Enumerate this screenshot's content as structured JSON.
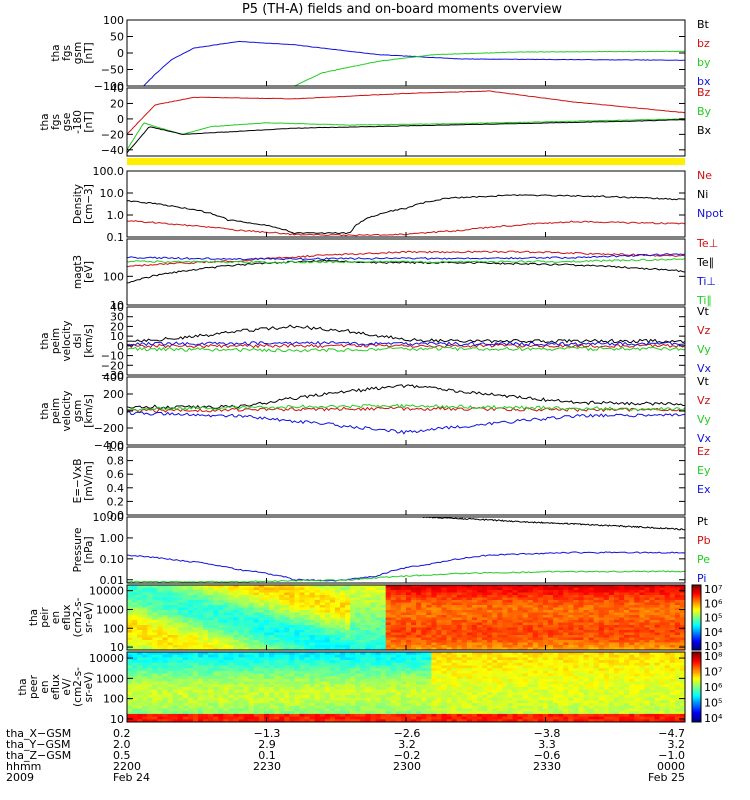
{
  "title": "P5 (TH-A) fields and on-board moments overview",
  "palette": {
    "black": "#000000",
    "red": "#d01010",
    "green": "#22cc22",
    "blue": "#1010e0",
    "yellow": "#ffee00"
  },
  "chart_data": [
    {
      "type": "line",
      "id": "fgs_gsm",
      "ylabel": [
        "tha",
        "fgs",
        "gsm",
        "[nT]"
      ],
      "ylim": [
        -100,
        100
      ],
      "yticks": [
        "100",
        "50",
        "0",
        "−50",
        "−100"
      ],
      "ytickvals": [
        100,
        50,
        0,
        -50,
        -100
      ],
      "legend": [
        {
          "name": "Bt",
          "color": "#000000"
        },
        {
          "name": "bz",
          "color": "#d01010"
        },
        {
          "name": "by",
          "color": "#22cc22"
        },
        {
          "name": "bx",
          "color": "#1010e0"
        }
      ],
      "series": [
        {
          "name": "bx",
          "color": "#1010e0",
          "x": [
            0.03,
            0.05,
            0.08,
            0.12,
            0.2,
            0.3,
            0.45,
            0.6,
            1.0
          ],
          "y": [
            -100,
            -65,
            -20,
            15,
            35,
            25,
            -5,
            -18,
            -22
          ]
        },
        {
          "name": "by",
          "color": "#22cc22",
          "x": [
            0.3,
            0.35,
            0.45,
            0.55,
            0.7,
            1.0
          ],
          "y": [
            -100,
            -60,
            -25,
            -5,
            3,
            5
          ]
        }
      ]
    },
    {
      "type": "line",
      "id": "fgs_gse",
      "ylabel": [
        "tha",
        "fgs",
        "gse",
        "-180",
        "[nT]"
      ],
      "ylim": [
        -48,
        40
      ],
      "yticks": [
        "40",
        "20",
        "0",
        "−20",
        "−40"
      ],
      "ytickvals": [
        40,
        20,
        0,
        -20,
        -40
      ],
      "legend": [
        {
          "name": "Bz",
          "color": "#d01010"
        },
        {
          "name": "By",
          "color": "#22cc22"
        },
        {
          "name": "Bx",
          "color": "#000000"
        }
      ],
      "series": [
        {
          "name": "Bz",
          "color": "#d01010",
          "x": [
            0.0,
            0.05,
            0.12,
            0.3,
            0.5,
            0.65,
            0.8,
            1.0
          ],
          "y": [
            -20,
            18,
            28,
            26,
            33,
            36,
            22,
            8
          ]
        },
        {
          "name": "By",
          "color": "#22cc22",
          "x": [
            0.0,
            0.03,
            0.06,
            0.1,
            0.15,
            0.25,
            0.4,
            0.6,
            0.8,
            1.0
          ],
          "y": [
            -40,
            -5,
            -12,
            -20,
            -10,
            -5,
            -8,
            -6,
            -3,
            0
          ]
        },
        {
          "name": "Bx",
          "color": "#000000",
          "x": [
            0.0,
            0.04,
            0.1,
            0.2,
            0.3,
            0.5,
            0.7,
            0.9,
            1.0
          ],
          "y": [
            -44,
            -10,
            -20,
            -16,
            -12,
            -9,
            -6,
            -3,
            -1
          ]
        }
      ]
    },
    {
      "type": "line",
      "id": "density",
      "ylog": true,
      "ylabel": [
        "Density",
        "[cm−3]"
      ],
      "ylim": [
        0.1,
        100
      ],
      "yticks": [
        "100.0",
        "10.0",
        "1.0",
        "0.1"
      ],
      "ytickvals": [
        100,
        10,
        1,
        0.1
      ],
      "legend": [
        {
          "name": "Ne",
          "color": "#d01010"
        },
        {
          "name": "Ni",
          "color": "#000000"
        },
        {
          "name": "Npot",
          "color": "#1010e0"
        }
      ],
      "series": [
        {
          "name": "Ni",
          "color": "#000000",
          "x": [
            0.0,
            0.08,
            0.18,
            0.3,
            0.4,
            0.42,
            0.5,
            0.58,
            0.7,
            0.85,
            1.0
          ],
          "y": [
            4.5,
            2.5,
            0.6,
            0.15,
            0.15,
            0.5,
            2,
            6,
            8,
            7,
            5
          ]
        },
        {
          "name": "Ne",
          "color": "#d01010",
          "x": [
            0.0,
            0.1,
            0.2,
            0.3,
            0.4,
            0.5,
            0.6,
            0.7,
            0.8,
            0.9,
            1.0
          ],
          "y": [
            0.55,
            0.35,
            0.2,
            0.13,
            0.12,
            0.13,
            0.2,
            0.35,
            0.5,
            0.45,
            0.4
          ]
        }
      ]
    },
    {
      "type": "line",
      "id": "magt3",
      "ylog": true,
      "ylabel": [
        "magt3",
        "[eV]"
      ],
      "ylim": [
        10,
        2000
      ],
      "yticks": [
        "100",
        "10"
      ],
      "ytickvals": [
        100,
        10
      ],
      "legend": [
        {
          "name": "Te⊥",
          "color": "#d01010"
        },
        {
          "name": "Te∥",
          "color": "#000000"
        },
        {
          "name": "Ti⊥",
          "color": "#1010e0"
        },
        {
          "name": "Ti∥",
          "color": "#22cc22"
        }
      ],
      "series": [
        {
          "name": "Te⊥",
          "color": "#d01010",
          "x": [
            0.0,
            0.2,
            0.4,
            0.5,
            0.7,
            0.85,
            1.0
          ],
          "y": [
            220,
            350,
            600,
            700,
            720,
            600,
            500
          ]
        },
        {
          "name": "Te∥",
          "color": "#000000",
          "x": [
            0.0,
            0.1,
            0.2,
            0.35,
            0.45,
            0.6,
            0.8,
            1.0
          ],
          "y": [
            60,
            150,
            250,
            350,
            300,
            300,
            250,
            150
          ]
        },
        {
          "name": "Ti⊥",
          "color": "#1010e0",
          "x": [
            0.0,
            0.2,
            0.45,
            0.6,
            0.8,
            1.0
          ],
          "y": [
            450,
            400,
            420,
            420,
            450,
            600
          ]
        },
        {
          "name": "Ti∥",
          "color": "#22cc22",
          "x": [
            0.0,
            0.2,
            0.45,
            0.6,
            0.8,
            1.0
          ],
          "y": [
            330,
            310,
            320,
            320,
            330,
            400
          ]
        }
      ]
    },
    {
      "type": "line",
      "id": "peim_vel_dsl",
      "ylabel": [
        "tha",
        "peim",
        "velocity",
        "dsl",
        "[km/s]"
      ],
      "ylim": [
        -30,
        40
      ],
      "yticks": [
        "40",
        "30",
        "20",
        "10",
        "0",
        "−10",
        "−20",
        "−30"
      ],
      "ytickvals": [
        40,
        30,
        20,
        10,
        0,
        -10,
        -20,
        -30
      ],
      "legend": [
        {
          "name": "Vt",
          "color": "#000000"
        },
        {
          "name": "Vz",
          "color": "#d01010"
        },
        {
          "name": "Vy",
          "color": "#22cc22"
        },
        {
          "name": "Vx",
          "color": "#1010e0"
        }
      ],
      "series": [
        {
          "name": "Vt",
          "color": "#000000",
          "x": [
            0.0,
            0.1,
            0.2,
            0.3,
            0.4,
            0.5,
            0.6,
            0.8,
            1.0
          ],
          "y": [
            5,
            8,
            15,
            20,
            15,
            6,
            5,
            5,
            5
          ]
        },
        {
          "name": "Vz",
          "color": "#d01010",
          "x": [
            0.0,
            0.3,
            0.5,
            1.0
          ],
          "y": [
            0,
            0,
            0,
            0
          ]
        },
        {
          "name": "Vy",
          "color": "#22cc22",
          "x": [
            0.0,
            0.3,
            0.5,
            1.0
          ],
          "y": [
            -3,
            -5,
            -3,
            -3
          ]
        },
        {
          "name": "Vx",
          "color": "#1010e0",
          "x": [
            0.0,
            0.3,
            0.5,
            1.0
          ],
          "y": [
            2,
            3,
            2,
            2
          ]
        }
      ]
    },
    {
      "type": "line",
      "id": "peim_vel_gsm",
      "ylabel": [
        "tha",
        "peim",
        "velocity",
        "gsm",
        "[km/s]"
      ],
      "ylim": [
        -400,
        400
      ],
      "yticks": [
        "400",
        "200",
        "0",
        "−200",
        "−400"
      ],
      "ytickvals": [
        400,
        200,
        0,
        -200,
        -400
      ],
      "legend": [
        {
          "name": "Vt",
          "color": "#000000"
        },
        {
          "name": "Vz",
          "color": "#d01010"
        },
        {
          "name": "Vy",
          "color": "#22cc22"
        },
        {
          "name": "Vx",
          "color": "#1010e0"
        }
      ],
      "series": [
        {
          "name": "Vt",
          "color": "#000000",
          "x": [
            0.0,
            0.2,
            0.35,
            0.5,
            0.65,
            0.8,
            1.0
          ],
          "y": [
            50,
            50,
            200,
            300,
            200,
            100,
            80
          ]
        },
        {
          "name": "Vz",
          "color": "#d01010",
          "x": [
            0.0,
            0.3,
            0.5,
            0.7,
            1.0
          ],
          "y": [
            0,
            20,
            30,
            20,
            10
          ]
        },
        {
          "name": "Vy",
          "color": "#22cc22",
          "x": [
            0.0,
            0.3,
            0.5,
            0.7,
            1.0
          ],
          "y": [
            20,
            50,
            60,
            40,
            20
          ]
        },
        {
          "name": "Vx",
          "color": "#1010e0",
          "x": [
            0.0,
            0.2,
            0.35,
            0.5,
            0.65,
            0.8,
            1.0
          ],
          "y": [
            -20,
            -60,
            -150,
            -250,
            -150,
            -60,
            -40
          ]
        }
      ]
    },
    {
      "type": "line",
      "id": "efield",
      "ylabel": [
        "E=−VxB",
        "[mV/m]"
      ],
      "ylim": [
        0,
        1
      ],
      "yticks": [
        "1.0",
        "0.8",
        "0.6",
        "0.4",
        "0.2",
        "0.0"
      ],
      "ytickvals": [
        1,
        0.8,
        0.6,
        0.4,
        0.2,
        0
      ],
      "legend": [
        {
          "name": "Ez",
          "color": "#d01010"
        },
        {
          "name": "Ey",
          "color": "#22cc22"
        },
        {
          "name": "Ex",
          "color": "#1010e0"
        }
      ],
      "series": []
    },
    {
      "type": "line",
      "id": "pressure",
      "ylog": true,
      "ylabel": [
        "Pressure",
        "[nPa]"
      ],
      "ylim": [
        0.007,
        10
      ],
      "yticks": [
        "10.00",
        "1.00",
        "0.10",
        "0.01"
      ],
      "ytickvals": [
        10,
        1,
        0.1,
        0.01
      ],
      "legend": [
        {
          "name": "Pt",
          "color": "#000000"
        },
        {
          "name": "Pb",
          "color": "#d01010"
        },
        {
          "name": "Pe",
          "color": "#22cc22"
        },
        {
          "name": "Pi",
          "color": "#1010e0"
        }
      ],
      "series": [
        {
          "name": "Pt",
          "color": "#000000",
          "x": [
            0.53,
            0.7,
            0.85,
            1.0
          ],
          "y": [
            10,
            6,
            4,
            2.5
          ]
        },
        {
          "name": "Pi",
          "color": "#1010e0",
          "x": [
            0.0,
            0.1,
            0.2,
            0.3,
            0.38,
            0.45,
            0.55,
            0.65,
            0.8,
            1.0
          ],
          "y": [
            0.15,
            0.08,
            0.03,
            0.01,
            0.009,
            0.015,
            0.06,
            0.15,
            0.2,
            0.2
          ]
        },
        {
          "name": "Pe",
          "color": "#22cc22",
          "x": [
            0.0,
            0.2,
            0.4,
            0.6,
            0.8,
            1.0
          ],
          "y": [
            0.008,
            0.008,
            0.01,
            0.02,
            0.025,
            0.025
          ]
        }
      ]
    },
    {
      "type": "heatmap",
      "id": "peir_en_eflux",
      "ylabel": [
        "tha",
        "peir",
        "en",
        "eflux",
        "(cm2-s-",
        "sr-eV)"
      ],
      "ylim": [
        7,
        20000
      ],
      "ylog": true,
      "yticks": [
        "10000",
        "1000",
        "100",
        "10"
      ],
      "ytickvals": [
        10000,
        1000,
        100,
        10
      ],
      "colorbar": {
        "labels": [
          "10⁷",
          "10⁶",
          "10⁵",
          "10⁴",
          "10³"
        ],
        "min_exp": 2.5,
        "max_exp": 7.2
      }
    },
    {
      "type": "heatmap",
      "id": "peer_en_eflux",
      "ylabel": [
        "tha",
        "peer",
        "en",
        "eflux",
        "eV/",
        "(cm2-s-",
        "sr-eV)"
      ],
      "ylim": [
        7,
        20000
      ],
      "ylog": true,
      "yticks": [
        "10000",
        "1000",
        "100",
        "10"
      ],
      "ytickvals": [
        10000,
        1000,
        100,
        10
      ],
      "colorbar": {
        "labels": [
          "10⁸",
          "10⁷",
          "10⁶",
          "10⁵",
          "10⁴"
        ],
        "min_exp": 3.5,
        "max_exp": 8.2
      }
    }
  ],
  "time_axis": {
    "rows": [
      {
        "label": "tha_X−GSM",
        "values": [
          "0.2",
          "−1.3",
          "−2.6",
          "−3.8",
          "−4.7"
        ]
      },
      {
        "label": "tha_Y−GSM",
        "values": [
          "2.0",
          "2.9",
          "3.2",
          "3.3",
          "3.2"
        ]
      },
      {
        "label": "tha_Z−GSM",
        "values": [
          "0.5",
          "0.1",
          "−0.2",
          "−0.6",
          "−1.0"
        ]
      },
      {
        "label": "hhmm",
        "values": [
          "2200",
          "2230",
          "2300",
          "2330",
          "0000"
        ]
      },
      {
        "label": "2009",
        "values": [
          "Feb 24",
          "",
          "",
          "",
          "Feb 25"
        ]
      }
    ]
  }
}
